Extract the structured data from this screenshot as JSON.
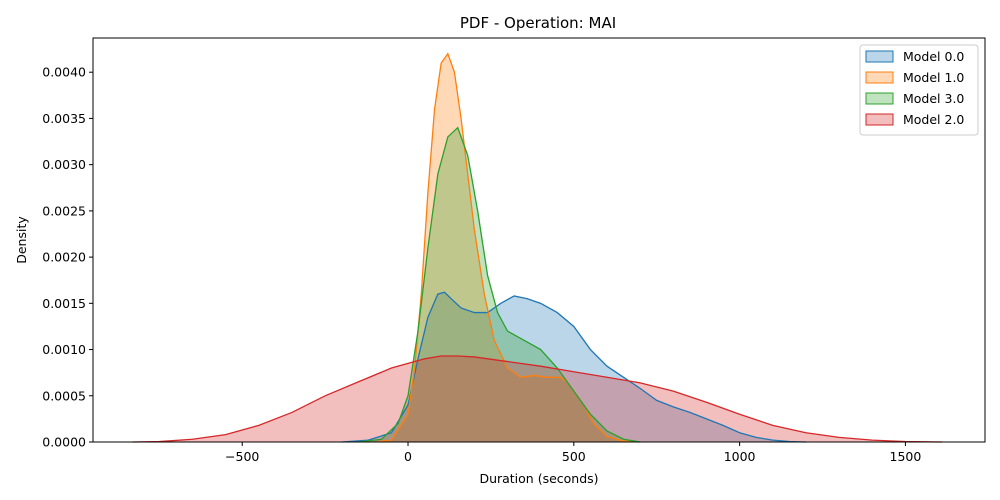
{
  "chart_data": {
    "type": "area",
    "title": "PDF - Operation: MAI",
    "xlabel": "Duration (seconds)",
    "ylabel": "Density",
    "xlim": [
      -950,
      1740
    ],
    "ylim": [
      0,
      0.00437
    ],
    "x_ticks": [
      -500,
      0,
      500,
      1000,
      1500
    ],
    "x_tick_labels": [
      "−500",
      "0",
      "500",
      "1000",
      "1500"
    ],
    "y_ticks": [
      0,
      0.0005,
      0.001,
      0.0015,
      0.002,
      0.0025,
      0.003,
      0.0035,
      0.004
    ],
    "y_tick_labels": [
      "0.0000",
      "0.0005",
      "0.0010",
      "0.0015",
      "0.0020",
      "0.0025",
      "0.0030",
      "0.0035",
      "0.0040"
    ],
    "grid": false,
    "legend_position": "top-right",
    "series": [
      {
        "name": "Model 0.0",
        "color": "#1f77b4",
        "x": [
          -200,
          -120,
          -50,
          0,
          30,
          60,
          90,
          110,
          130,
          160,
          200,
          240,
          280,
          320,
          360,
          400,
          450,
          500,
          550,
          600,
          650,
          700,
          750,
          800,
          850,
          900,
          950,
          1000,
          1050,
          1100,
          1150,
          1200
        ],
        "values": [
          0,
          2e-05,
          0.0001,
          0.0004,
          0.0009,
          0.00135,
          0.0016,
          0.00162,
          0.00155,
          0.00145,
          0.0014,
          0.0014,
          0.0015,
          0.00158,
          0.00155,
          0.0015,
          0.0014,
          0.00125,
          0.001,
          0.00082,
          0.0007,
          0.00058,
          0.00045,
          0.00038,
          0.00032,
          0.00025,
          0.00018,
          0.0001,
          5e-05,
          2e-05,
          5e-06,
          0
        ]
      },
      {
        "name": "Model 1.0",
        "color": "#ff7f0e",
        "x": [
          -100,
          -50,
          0,
          20,
          40,
          60,
          80,
          100,
          120,
          140,
          160,
          180,
          200,
          230,
          260,
          300,
          340,
          380,
          420,
          460,
          480,
          500,
          530,
          560,
          600,
          650,
          700
        ],
        "values": [
          0,
          2e-05,
          0.0003,
          0.0008,
          0.0016,
          0.0027,
          0.0036,
          0.0041,
          0.0042,
          0.004,
          0.0035,
          0.0029,
          0.0023,
          0.0016,
          0.0011,
          0.0008,
          0.0007,
          0.00072,
          0.0007,
          0.0007,
          0.00065,
          0.00055,
          0.0004,
          0.0002,
          6e-05,
          1e-05,
          0
        ]
      },
      {
        "name": "Model 3.0",
        "color": "#2ca02c",
        "x": [
          -150,
          -80,
          -30,
          0,
          30,
          60,
          90,
          120,
          150,
          180,
          210,
          240,
          270,
          300,
          350,
          400,
          450,
          500,
          550,
          600,
          650,
          700
        ],
        "values": [
          0,
          3e-05,
          0.0002,
          0.0005,
          0.0012,
          0.0021,
          0.0029,
          0.0033,
          0.0034,
          0.0031,
          0.0025,
          0.0018,
          0.0014,
          0.0012,
          0.0011,
          0.001,
          0.0008,
          0.00055,
          0.0003,
          0.00012,
          3e-05,
          0
        ]
      },
      {
        "name": "Model 2.0",
        "color": "#d62728",
        "x": [
          -830,
          -750,
          -650,
          -550,
          -450,
          -350,
          -250,
          -150,
          -50,
          0,
          50,
          100,
          150,
          200,
          300,
          400,
          500,
          600,
          700,
          800,
          900,
          1000,
          1100,
          1200,
          1300,
          1400,
          1500,
          1610
        ],
        "values": [
          0,
          5e-06,
          3e-05,
          8e-05,
          0.00018,
          0.00032,
          0.0005,
          0.00065,
          0.0008,
          0.00085,
          0.0009,
          0.00093,
          0.00093,
          0.00092,
          0.00087,
          0.00082,
          0.00076,
          0.0007,
          0.00064,
          0.00055,
          0.00043,
          0.0003,
          0.00018,
          0.0001,
          5e-05,
          2e-05,
          5e-06,
          0
        ]
      }
    ]
  }
}
